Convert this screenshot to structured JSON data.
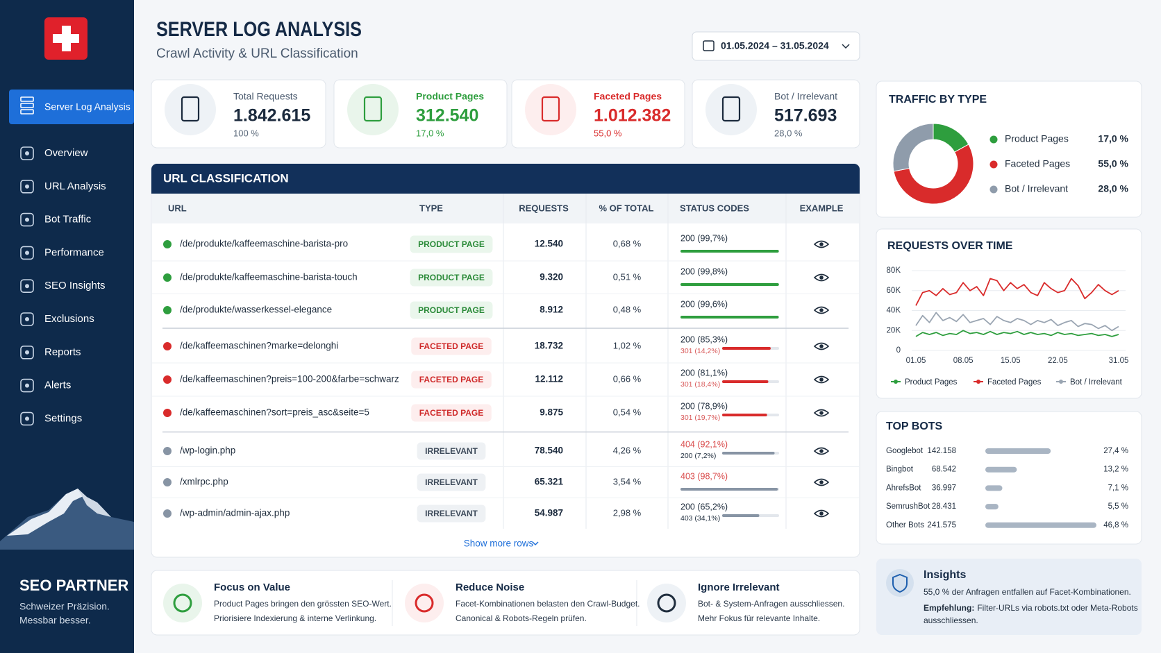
{
  "sidebar": {
    "active": "Server Log Analysis",
    "menu": [
      "Overview",
      "URL Analysis",
      "Bot Traffic",
      "Performance",
      "SEO Insights",
      "Exclusions",
      "Reports",
      "Alerts",
      "Settings"
    ],
    "brand_title": "SEO PARTNER",
    "brand_lines": [
      "Schweizer Präzision.",
      "Messbar besser."
    ]
  },
  "header": {
    "title": "SERVER LOG ANALYSIS",
    "subtitle": "Crawl Activity & URL Classification",
    "date_range": "01.05.2024 – 31.05.2024"
  },
  "kpis": [
    {
      "label": "Total Requests",
      "value": "1.842.615",
      "share": "100 %",
      "color": "#1b2a3d",
      "share_color": "#5d6b7c",
      "icon_bg": "#eef2f6"
    },
    {
      "label": "Product Pages",
      "value": "312.540",
      "share": "17,0 %",
      "color": "#2e9e3e",
      "share_color": "#2e9e3e",
      "icon_bg": "#e9f5eb"
    },
    {
      "label": "Faceted Pages",
      "value": "1.012.382",
      "share": "55,0 %",
      "color": "#d92b2b",
      "share_color": "#d92b2b",
      "icon_bg": "#fdeeee"
    },
    {
      "label": "Bot / Irrelevant",
      "value": "517.693",
      "share": "28,0 %",
      "color": "#1b2a3d",
      "share_color": "#5d6b7c",
      "icon_bg": "#eef2f6"
    }
  ],
  "table": {
    "title": "URL CLASSIFICATION",
    "columns": [
      "URL",
      "TYPE",
      "REQUESTS",
      "% OF TOTAL",
      "STATUS CODES",
      "EXAMPLE"
    ],
    "rows": [
      {
        "url": "/de/produkte/kaffeemaschine-barista-pro",
        "type": "PRODUCT PAGE",
        "requests": "12.540",
        "share": "0,68 %",
        "color": "#2e9e3e",
        "badge_fill": "#eaf6ec",
        "badge_text": "#2a8a38",
        "status": [
          {
            "value": 99.7,
            "label": "200 (99,7%)",
            "color": "#1f2d3d"
          }
        ]
      },
      {
        "url": "/de/produkte/kaffeemaschine-barista-touch",
        "type": "PRODUCT PAGE",
        "requests": "9.320",
        "share": "0,51 %",
        "color": "#2e9e3e",
        "badge_fill": "#eaf6ec",
        "badge_text": "#2a8a38",
        "status": [
          {
            "value": 99.8,
            "label": "200 (99,8%)",
            "color": "#1f2d3d"
          }
        ]
      },
      {
        "url": "/de/produkte/wasserkessel-elegance",
        "type": "PRODUCT PAGE",
        "requests": "8.912",
        "share": "0,48 %",
        "color": "#2e9e3e",
        "badge_fill": "#eaf6ec",
        "badge_text": "#2a8a38",
        "status": [
          {
            "value": 99.6,
            "label": "200 (99,6%)",
            "color": "#1f2d3d"
          }
        ]
      },
      {
        "url": "/de/kaffeemaschinen?marke=delonghi",
        "type": "FACETED PAGE",
        "requests": "18.732",
        "share": "1,02 %",
        "color": "#d92b2b",
        "badge_fill": "#fdeeee",
        "badge_text": "#cf2a2a",
        "status": [
          {
            "value": 85.3,
            "label": "200 (85,3%)",
            "color": "#1f2d3d"
          },
          {
            "value": 14.2,
            "label": "301 (14,2%)",
            "color": "#d95a5a"
          }
        ]
      },
      {
        "url": "/de/kaffeemaschinen?preis=100-200&farbe=schwarz",
        "type": "FACETED PAGE",
        "requests": "12.112",
        "share": "0,66 %",
        "color": "#d92b2b",
        "badge_fill": "#fdeeee",
        "badge_text": "#cf2a2a",
        "status": [
          {
            "value": 81.1,
            "label": "200 (81,1%)",
            "color": "#1f2d3d"
          },
          {
            "value": 18.4,
            "label": "301 (18,4%)",
            "color": "#d95a5a"
          }
        ]
      },
      {
        "url": "/de/kaffeemaschinen?sort=preis_asc&seite=5",
        "type": "FACETED PAGE",
        "requests": "9.875",
        "share": "0,54 %",
        "color": "#d92b2b",
        "badge_fill": "#fdeeee",
        "badge_text": "#cf2a2a",
        "status": [
          {
            "value": 78.9,
            "label": "200 (78,9%)",
            "color": "#1f2d3d"
          },
          {
            "value": 19.7,
            "label": "301 (19,7%)",
            "color": "#d95a5a"
          }
        ]
      },
      {
        "url": "/wp-login.php",
        "type": "IRRELEVANT",
        "requests": "78.540",
        "share": "4,26 %",
        "color": "#8794a4",
        "badge_fill": "#eef1f4",
        "badge_text": "#3d4a5a",
        "status": [
          {
            "value": 92.1,
            "label": "404 (92,1%)",
            "color": "#d94a4a"
          },
          {
            "value": 7.2,
            "label": "200 (7,2%)",
            "color": "#1f2d3d"
          }
        ]
      },
      {
        "url": "/xmlrpc.php",
        "type": "IRRELEVANT",
        "requests": "65.321",
        "share": "3,54 %",
        "color": "#8794a4",
        "badge_fill": "#eef1f4",
        "badge_text": "#3d4a5a",
        "status": [
          {
            "value": 98.7,
            "label": "403 (98,7%)",
            "color": "#d94a4a"
          }
        ]
      },
      {
        "url": "/wp-admin/admin-ajax.php",
        "type": "IRRELEVANT",
        "requests": "54.987",
        "share": "2,98 %",
        "color": "#8794a4",
        "badge_fill": "#eef1f4",
        "badge_text": "#3d4a5a",
        "status": [
          {
            "value": 65.2,
            "label": "200 (65,2%)",
            "color": "#1f2d3d"
          },
          {
            "value": 34.1,
            "label": "403 (34,1%)",
            "color": "#1f2d3d"
          }
        ]
      }
    ],
    "more": "Show more rows"
  },
  "tips": [
    {
      "title": "Focus on Value",
      "lines": [
        "Product Pages bringen den grössten SEO-Wert.",
        "Priorisiere Indexierung & interne Verlinkung."
      ]
    },
    {
      "title": "Reduce Noise",
      "lines": [
        "Facet-Kombinationen belasten den Crawl-Budget.",
        "Canonical & Robots-Regeln prüfen."
      ]
    },
    {
      "title": "Ignore Irrelevant",
      "lines": [
        "Bot- & System-Anfragen ausschliessen.",
        "Mehr Fokus für relevante Inhalte."
      ]
    }
  ],
  "chart_data": [
    {
      "type": "pie",
      "title": "TRAFFIC BY TYPE",
      "categories": [
        "Product Pages",
        "Faceted Pages",
        "Bot / Irrelevant"
      ],
      "values": [
        17,
        55,
        28
      ],
      "value_labels": [
        "17,0 %",
        "55,0 %",
        "28,0 %"
      ],
      "colors": [
        "#2e9e3e",
        "#d92b2b",
        "#8f9cab"
      ]
    },
    {
      "type": "line",
      "title": "REQUESTS OVER TIME",
      "categories": [
        "01.05",
        null,
        null,
        null,
        null,
        null,
        null,
        "08.05",
        null,
        null,
        null,
        null,
        null,
        null,
        "15.05",
        null,
        null,
        null,
        null,
        null,
        null,
        "22.05",
        null,
        null,
        null,
        null,
        null,
        null,
        null,
        null,
        "31.05"
      ],
      "series": [
        {
          "name": "Product Pages",
          "color": "#2e9e3e",
          "values": [
            14000,
            18000,
            16000,
            18000,
            15000,
            17000,
            16000,
            20000,
            17000,
            18000,
            16000,
            19000,
            16000,
            18000,
            17000,
            19000,
            16000,
            18000,
            16000,
            17000,
            15000,
            18000,
            16000,
            17000,
            15000,
            16000,
            17000,
            15000,
            16000,
            14000,
            16000
          ]
        },
        {
          "name": "Faceted Pages",
          "color": "#d92b2b",
          "values": [
            45000,
            58000,
            60000,
            55000,
            62000,
            56000,
            58000,
            68000,
            60000,
            64000,
            55000,
            72000,
            70000,
            60000,
            68000,
            62000,
            66000,
            58000,
            55000,
            68000,
            62000,
            58000,
            60000,
            72000,
            65000,
            52000,
            58000,
            66000,
            60000,
            56000,
            60000
          ]
        },
        {
          "name": "Bot / Irrelevant",
          "color": "#9aa5b2",
          "values": [
            25000,
            35000,
            28000,
            38000,
            30000,
            33000,
            29000,
            36000,
            28000,
            30000,
            32000,
            26000,
            34000,
            30000,
            28000,
            32000,
            30000,
            26000,
            30000,
            28000,
            31000,
            25000,
            28000,
            30000,
            24000,
            27000,
            26000,
            22000,
            25000,
            20000,
            24000
          ]
        }
      ],
      "ylim": [
        0,
        80000
      ],
      "yticks": [
        0,
        {
          "value": 20000,
          "label": "20K"
        },
        {
          "value": 40000,
          "label": "40K"
        },
        {
          "value": 60000,
          "label": "60K"
        },
        {
          "value": 80000,
          "label": "80K"
        }
      ],
      "grid": true
    },
    {
      "type": "bar",
      "orientation": "horizontal",
      "title": "TOP BOTS",
      "categories": [
        "Googlebot",
        "Bingbot",
        "AhrefsBot",
        "SemrushBot",
        "Other Bots"
      ],
      "values": [
        142158,
        68542,
        36997,
        28431,
        241575
      ],
      "value_labels": [
        "142.158",
        "68.542",
        "36.997",
        "28.431",
        "241.575"
      ],
      "percent_labels": [
        "27,4 %",
        "13,2 %",
        "7,1 %",
        "5,5 %",
        "46,8 %"
      ],
      "color": "#a9b5c3"
    }
  ],
  "insights": {
    "title": "Insights",
    "text": "55,0 % der Anfragen entfallen auf Facet-Kombinationen.",
    "recommendation_label": "Empfehlung:",
    "recommendation_lines": [
      "Filter-URLs via robots.txt oder Meta-Robots",
      "ausschliessen."
    ]
  }
}
